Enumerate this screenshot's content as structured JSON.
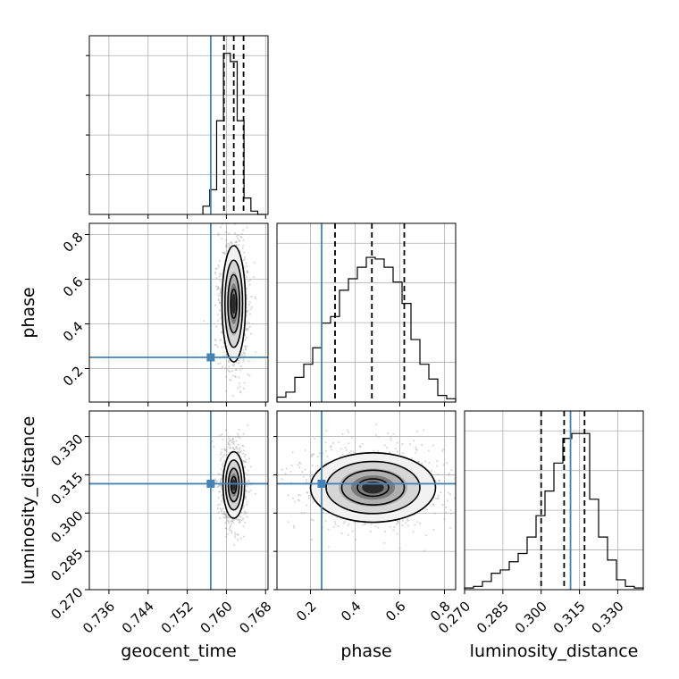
{
  "chart_data": {
    "type": "corner",
    "parameters": [
      "geocent_time",
      "phase",
      "luminosity_distance"
    ],
    "truths": {
      "geocent_time": 0.7568,
      "phase": 0.25,
      "luminosity_distance": 0.3115
    },
    "quantiles_dashed": {
      "geocent_time": [
        0.7595,
        0.7615,
        0.7635
      ],
      "phase": [
        0.31,
        0.475,
        0.62
      ],
      "luminosity_distance": [
        0.3,
        0.309,
        0.317
      ]
    },
    "ranges": {
      "geocent_time": [
        0.732,
        0.7685
      ],
      "phase": [
        0.05,
        0.85
      ],
      "luminosity_distance": [
        0.27,
        0.34
      ]
    },
    "ticks": {
      "geocent_time": [
        "0.736",
        "0.744",
        "0.752",
        "0.760",
        "0.768"
      ],
      "phase": [
        "0.2",
        "0.4",
        "0.6",
        "0.8"
      ],
      "luminosity_distance": [
        "0.270",
        "0.285",
        "0.300",
        "0.315",
        "0.330"
      ]
    },
    "histograms": {
      "geocent_time": {
        "edges": [
          0.7552,
          0.7566,
          0.758,
          0.7594,
          0.7608,
          0.7622,
          0.7636,
          0.765,
          0.7664,
          0.7678
        ],
        "counts": [
          0.05,
          0.15,
          0.57,
          0.98,
          0.93,
          0.57,
          0.1,
          0.02,
          0.0
        ]
      },
      "phase": {
        "edges": [
          0.05,
          0.09,
          0.13,
          0.17,
          0.21,
          0.25,
          0.29,
          0.33,
          0.37,
          0.41,
          0.45,
          0.49,
          0.53,
          0.57,
          0.61,
          0.65,
          0.69,
          0.73,
          0.77,
          0.81,
          0.85
        ],
        "counts": [
          0.03,
          0.06,
          0.15,
          0.23,
          0.33,
          0.48,
          0.52,
          0.68,
          0.75,
          0.82,
          0.88,
          0.87,
          0.82,
          0.73,
          0.6,
          0.38,
          0.23,
          0.14,
          0.04,
          0.02
        ]
      },
      "luminosity_distance": {
        "edges": [
          0.27,
          0.2735,
          0.277,
          0.2805,
          0.284,
          0.2875,
          0.291,
          0.2945,
          0.298,
          0.3015,
          0.305,
          0.3085,
          0.312,
          0.3155,
          0.319,
          0.3225,
          0.326,
          0.3295,
          0.333,
          0.3365,
          0.34
        ],
        "counts": [
          0.01,
          0.02,
          0.05,
          0.1,
          0.12,
          0.17,
          0.22,
          0.32,
          0.45,
          0.6,
          0.77,
          0.92,
          0.95,
          0.95,
          0.55,
          0.32,
          0.18,
          0.06,
          0.02,
          0.01
        ]
      }
    },
    "contours_2d": [
      {
        "x": "geocent_time",
        "y": "phase",
        "center": [
          0.7615,
          0.49
        ],
        "sigma": [
          0.0012,
          0.13
        ]
      },
      {
        "x": "geocent_time",
        "y": "luminosity_distance",
        "center": [
          0.7615,
          0.311
        ],
        "sigma": [
          0.0011,
          0.0065
        ]
      },
      {
        "x": "phase",
        "y": "luminosity_distance",
        "center": [
          0.48,
          0.31
        ],
        "sigma": [
          0.14,
          0.0068
        ]
      }
    ],
    "grid": true,
    "truth_color": "#4682b4",
    "contour_color": "#000000"
  }
}
